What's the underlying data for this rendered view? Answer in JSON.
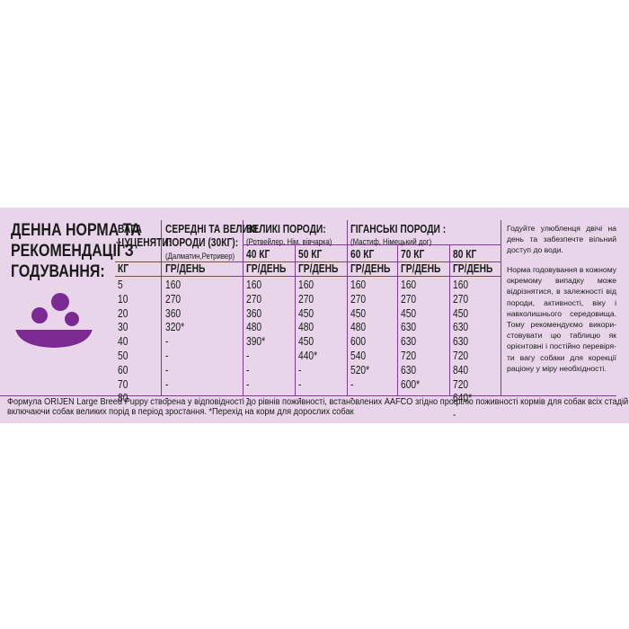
{
  "heading": [
    "ДЕННА НОРМА ТА",
    "РЕКОМЕНДАЦІЇ З",
    "ГОДУВАННЯ:"
  ],
  "table": {
    "weight_header": [
      "ВАГА",
      "ЦУЦЕНЯТИ:"
    ],
    "groups": [
      {
        "title": [
          "СЕРЕДНІ ТА ВЕЛИКІ",
          "ПОРОДИ (30КГ):"
        ],
        "sub": "(Далматин,Ретривер)"
      },
      {
        "title": [
          "ВЕЛИКІ ПОРОДИ:"
        ],
        "sub": "(Ротвейлер, Нім. вівчарка)"
      },
      {
        "title": [
          "ГІГАНСЬКІ ПОРОДИ :"
        ],
        "sub": "(Мастиф, Німецький дог)"
      }
    ],
    "adult_weights": [
      "40 КГ",
      "50 КГ",
      "60 КГ",
      "70 КГ",
      "80 КГ"
    ],
    "unit_kg": "КГ",
    "unit_gpd": "ГР/ДЕНЬ",
    "rows": [
      [
        "5",
        "160",
        "160",
        "160",
        "160",
        "160",
        "160"
      ],
      [
        "10",
        "270",
        "270",
        "270",
        "270",
        "270",
        "270"
      ],
      [
        "20",
        "360",
        "360",
        "450",
        "450",
        "450",
        "450"
      ],
      [
        "30",
        "320*",
        "480",
        "480",
        "480",
        "630",
        "630"
      ],
      [
        "40",
        "-",
        "390*",
        "450",
        "600",
        "630",
        "630"
      ],
      [
        "50",
        "-",
        "-",
        "440*",
        "540",
        "720",
        "720"
      ],
      [
        "60",
        "-",
        "-",
        "-",
        "520*",
        "630",
        "840"
      ],
      [
        "70",
        "-",
        "-",
        "-",
        "-",
        "600*",
        "720"
      ],
      [
        "80",
        "-",
        "-",
        "-",
        "-",
        "-",
        "640*"
      ]
    ],
    "trailing_dash": "-"
  },
  "notes": {
    "p1": "Годуйте улюбленця двічі на день та забезпечте вільний доступ до води.",
    "p2": "Норма годовування в кожному окремому випадку може відрізнятися, в залежності від породи, активності, віку і навколишнього середовища. Тому рекомендуємо викори-стовувати цю таблицю як орієнтовні і постійно перевіря-ти вагу собаки для корекції раціону у міру необхідності."
  },
  "footer": [
    "Формула ORIJEN Large Breed Puppy створена у відповідності до рівнів поживності, встановлених AAFCO згідно профілю поживності кормів для собак всіх стадій життя,",
    "включаючи собак великих порід в період зростання. *Перехід на корм для дорослих собак"
  ],
  "colors": {
    "panel": "#e8d5e9",
    "accent": "#7b2a92",
    "lines": "#7b3f8c"
  },
  "icon": "bowl-with-kibble-icon"
}
